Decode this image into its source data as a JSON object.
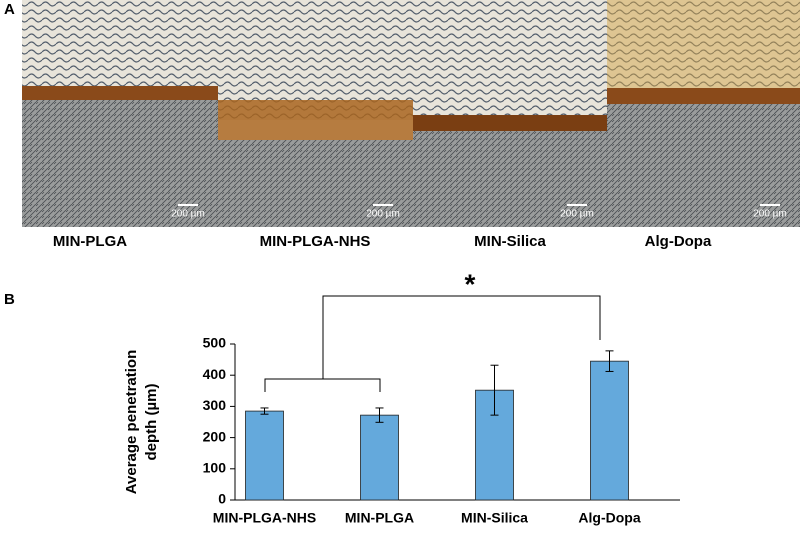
{
  "panel_a": {
    "label": "A",
    "captions": [
      "MIN-PLGA",
      "MIN-PLGA-NHS",
      "MIN-Silica",
      "Alg-Dopa"
    ],
    "scale_bars": [
      "200 µm",
      "200 µm",
      "200 µm",
      "200 µm"
    ]
  },
  "chart_data": {
    "type": "bar",
    "panel_label": "B",
    "y_label": [
      "Average penetration",
      "depth  (µm)"
    ],
    "categories": [
      "MIN-PLGA-NHS",
      "MIN-PLGA",
      "MIN-Silica",
      "Alg-Dopa"
    ],
    "values": [
      285,
      272,
      352,
      445
    ],
    "errors": [
      10,
      23,
      80,
      33
    ],
    "color": "#64a9dc",
    "annotation": "*",
    "ylim": [
      0,
      500
    ],
    "yticks": [
      0,
      100,
      200,
      300,
      400,
      500
    ],
    "grid": false
  }
}
